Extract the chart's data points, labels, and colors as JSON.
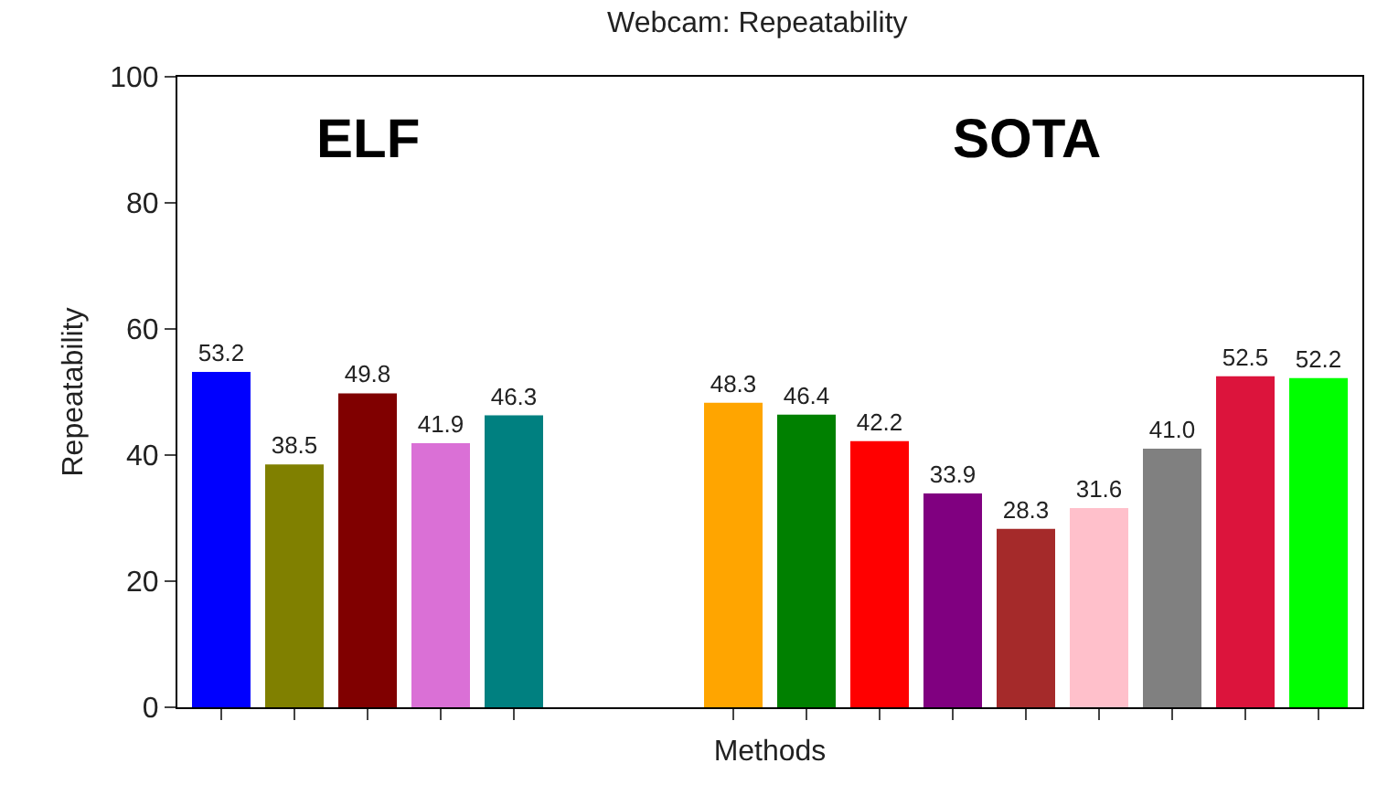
{
  "chart_data": {
    "type": "bar",
    "title": "Webcam: Repeatability",
    "xlabel": "Methods",
    "ylabel": "Repeatability",
    "categories": [
      null,
      null,
      null,
      null,
      null,
      null,
      null,
      null,
      null,
      null,
      null,
      null,
      null,
      null,
      null,
      null
    ],
    "values": [
      53.2,
      38.5,
      49.8,
      41.9,
      46.3,
      null,
      null,
      48.3,
      46.4,
      42.2,
      33.9,
      28.3,
      31.6,
      41.0,
      52.5,
      52.2
    ],
    "colors": [
      "#0000ff",
      "#808000",
      "#800000",
      "#da70d6",
      "#008080",
      "#ffffff",
      "#ffffff",
      "#ffa500",
      "#008000",
      "#ff0000",
      "#800080",
      "#a52a2a",
      "#ffc0cb",
      "#808080",
      "#dc143c",
      "#00ff00"
    ],
    "value_labels": [
      "53.2",
      "38.5",
      "49.8",
      "41.9",
      "46.3",
      null,
      null,
      "48.3",
      "46.4",
      "42.2",
      "33.9",
      "28.3",
      "31.6",
      "41.0",
      "52.5",
      "52.2"
    ],
    "ylim": [
      0,
      100
    ],
    "yticks": [
      0,
      20,
      40,
      60,
      80,
      100
    ],
    "grid": false,
    "annotations": [
      "ELF",
      "SOTA"
    ]
  }
}
